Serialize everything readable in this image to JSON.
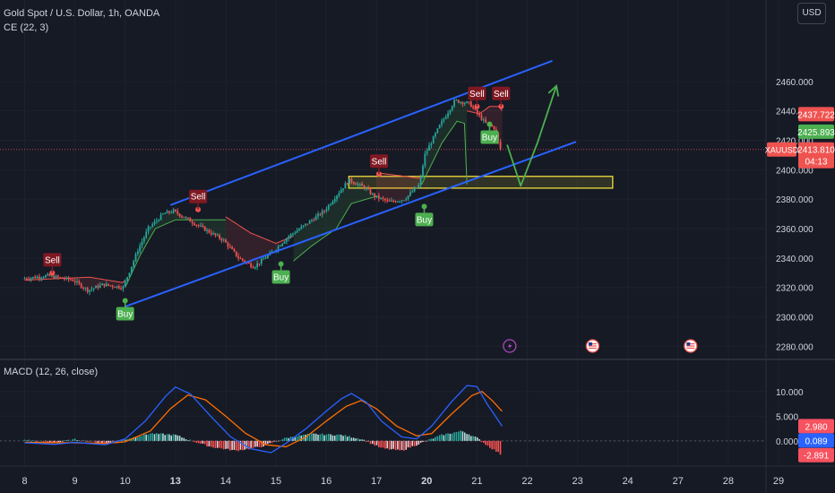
{
  "header": {
    "symbol_title": "Gold Spot / U.S. Dollar, 1h, OANDA",
    "indicator_ce": "CE (22, 3)",
    "currency": "USD"
  },
  "macd_legend": "MACD (12, 26, close)",
  "colors": {
    "background": "#161a25",
    "up": "#26a69a",
    "down": "#ef5350",
    "channel": "#2962ff",
    "arrow": "#4caf50",
    "macd_line": "#2962ff",
    "signal_line": "#ff6d00",
    "ce_long": "#4caf50",
    "ce_short": "#ef5350",
    "zone": "#ffeb3b"
  },
  "chart_data": [
    {
      "type": "candlestick",
      "title": "Gold Spot / U.S. Dollar, 1h, OANDA",
      "ylim": [
        2276,
        2480
      ],
      "y_ticks": [
        "2280.000",
        "2300.000",
        "2320.000",
        "2340.000",
        "2360.000",
        "2380.000",
        "2400.000",
        "2420.000",
        "2440.000",
        "2460.000"
      ],
      "x_labels": [
        "8",
        "9",
        "10",
        "13",
        "14",
        "15",
        "16",
        "17",
        "20",
        "21",
        "22",
        "23",
        "24",
        "27",
        "28",
        "29"
      ],
      "x_label_bold": [
        "13",
        "20"
      ],
      "price_path": [
        [
          0,
          2326
        ],
        [
          0.5,
          2328
        ],
        [
          1,
          2325
        ],
        [
          1.3,
          2318
        ],
        [
          1.6,
          2322
        ],
        [
          2,
          2320
        ],
        [
          2.3,
          2346
        ],
        [
          2.5,
          2360
        ],
        [
          2.8,
          2370
        ],
        [
          3,
          2372
        ],
        [
          3.3,
          2366
        ],
        [
          3.6,
          2360
        ],
        [
          4,
          2352
        ],
        [
          4.3,
          2340
        ],
        [
          4.6,
          2334
        ],
        [
          5,
          2345
        ],
        [
          5.3,
          2355
        ],
        [
          5.6,
          2362
        ],
        [
          6,
          2372
        ],
        [
          6.3,
          2385
        ],
        [
          6.5,
          2393
        ],
        [
          6.8,
          2388
        ],
        [
          7,
          2382
        ],
        [
          7.3,
          2378
        ],
        [
          7.6,
          2380
        ],
        [
          7.9,
          2390
        ],
        [
          8,
          2410
        ],
        [
          8.3,
          2430
        ],
        [
          8.6,
          2447
        ],
        [
          8.9,
          2445
        ],
        [
          9,
          2440
        ],
        [
          9.2,
          2432
        ],
        [
          9.4,
          2428
        ],
        [
          9.5,
          2413.81
        ]
      ],
      "chandelier_exit": [
        {
          "side": "short",
          "points": [
            [
              0,
              2325
            ],
            [
              1.3,
              2327
            ],
            [
              2,
              2323
            ]
          ]
        },
        {
          "side": "long",
          "points": [
            [
              2,
              2320
            ],
            [
              2.3,
              2342
            ],
            [
              2.6,
              2360
            ],
            [
              3,
              2366
            ],
            [
              4,
              2366
            ]
          ]
        },
        {
          "side": "short",
          "points": [
            [
              4,
              2368
            ],
            [
              4.5,
              2357
            ],
            [
              5,
              2350
            ],
            [
              5.35,
              2355
            ]
          ]
        },
        {
          "side": "long",
          "points": [
            [
              5.35,
              2338
            ],
            [
              5.7,
              2348
            ],
            [
              6.2,
              2360
            ],
            [
              6.5,
              2377
            ],
            [
              7,
              2382
            ]
          ]
        },
        {
          "side": "short",
          "points": [
            [
              7,
              2398
            ],
            [
              7.9,
              2394
            ]
          ]
        },
        {
          "side": "long",
          "points": [
            [
              7.9,
              2390
            ],
            [
              8.3,
              2418
            ],
            [
              8.6,
              2433
            ],
            [
              8.8,
              2431
            ]
          ]
        },
        {
          "side": "short",
          "points": [
            [
              8.8,
              2440
            ],
            [
              9.05,
              2438
            ],
            [
              9.25,
              2443
            ],
            [
              9.5,
              2443
            ]
          ]
        }
      ],
      "signals": [
        {
          "label": "Sell",
          "x": 0.55,
          "price": 2330,
          "dir": "sell"
        },
        {
          "label": "Buy",
          "x": 2.0,
          "price": 2311,
          "dir": "buy"
        },
        {
          "label": "Sell",
          "x": 3.45,
          "price": 2373,
          "dir": "sell"
        },
        {
          "label": "Buy",
          "x": 5.1,
          "price": 2336,
          "dir": "buy"
        },
        {
          "label": "Sell",
          "x": 7.05,
          "price": 2397,
          "dir": "sell"
        },
        {
          "label": "Buy",
          "x": 7.95,
          "price": 2375,
          "dir": "buy"
        },
        {
          "label": "Sell",
          "x": 9.0,
          "price": 2443,
          "dir": "sell"
        },
        {
          "label": "Buy",
          "x": 9.25,
          "price": 2431,
          "dir": "buy"
        },
        {
          "label": "Sell",
          "x": 9.48,
          "price": 2443,
          "dir": "sell"
        }
      ],
      "channel_upper": [
        [
          2.9,
          2376
        ],
        [
          10.5,
          2474
        ]
      ],
      "channel_lower": [
        [
          2.0,
          2307
        ],
        [
          10.97,
          2419
        ]
      ],
      "zone": {
        "x_start": 6.45,
        "x_end": 11.7,
        "top": 2395.5,
        "bottom": 2387.5
      },
      "projection_path": [
        [
          9.6,
          2417
        ],
        [
          9.87,
          2389
        ],
        [
          10.2,
          2418
        ],
        [
          10.58,
          2457
        ]
      ],
      "current_price_line": 2413.81,
      "price_labels": [
        {
          "text": "2437.722",
          "price": 2437.722,
          "color": "#ef5350",
          "symbol": ""
        },
        {
          "text": "2425.893",
          "price": 2425.893,
          "color": "#4caf50",
          "symbol": ""
        },
        {
          "text": "2413.810",
          "price": 2413.81,
          "color": "#ef5350",
          "symbol": "XAUUSD"
        }
      ],
      "countdown": "04:13",
      "event_icons": [
        {
          "x": 9.65,
          "kind": "bolt"
        },
        {
          "x": 11.3,
          "kind": "flag"
        },
        {
          "x": 13.25,
          "kind": "flag"
        }
      ]
    },
    {
      "type": "line",
      "title": "MACD (12, 26, close)",
      "ylim": [
        -3.3,
        12.5
      ],
      "y_ticks": [
        "10.000",
        "5.000",
        "0.000"
      ],
      "series": [
        {
          "name": "MACD",
          "values": [
            [
              0,
              -0.4
            ],
            [
              0.6,
              -0.7
            ],
            [
              1,
              -0.3
            ],
            [
              1.6,
              -0.8
            ],
            [
              2,
              0.4
            ],
            [
              2.4,
              4
            ],
            [
              2.8,
              9
            ],
            [
              3,
              10.9
            ],
            [
              3.3,
              9.5
            ],
            [
              3.7,
              5
            ],
            [
              4.1,
              0.8
            ],
            [
              4.5,
              -1.6
            ],
            [
              4.9,
              -2.4
            ],
            [
              5.2,
              -0.5
            ],
            [
              5.6,
              2.5
            ],
            [
              6.0,
              6
            ],
            [
              6.3,
              8.5
            ],
            [
              6.5,
              9.6
            ],
            [
              6.8,
              7.8
            ],
            [
              7.1,
              4
            ],
            [
              7.5,
              0.8
            ],
            [
              7.8,
              0.4
            ],
            [
              8.1,
              3
            ],
            [
              8.5,
              8
            ],
            [
              8.8,
              11.2
            ],
            [
              9.0,
              11
            ],
            [
              9.2,
              7.5
            ],
            [
              9.4,
              4.5
            ],
            [
              9.5,
              2.98
            ]
          ]
        },
        {
          "name": "Signal",
          "values": [
            [
              0,
              -0.3
            ],
            [
              1,
              -0.4
            ],
            [
              1.6,
              -0.5
            ],
            [
              2,
              -0.2
            ],
            [
              2.5,
              2
            ],
            [
              2.9,
              6.5
            ],
            [
              3.25,
              9.3
            ],
            [
              3.6,
              8.3
            ],
            [
              4.0,
              5
            ],
            [
              4.4,
              1.5
            ],
            [
              4.8,
              -0.8
            ],
            [
              5.2,
              -1.2
            ],
            [
              5.6,
              0.8
            ],
            [
              6.0,
              4
            ],
            [
              6.4,
              7
            ],
            [
              6.7,
              8.2
            ],
            [
              7.0,
              6.5
            ],
            [
              7.4,
              3
            ],
            [
              7.8,
              1
            ],
            [
              8.1,
              1.5
            ],
            [
              8.5,
              5.5
            ],
            [
              8.9,
              9.2
            ],
            [
              9.1,
              10
            ],
            [
              9.3,
              8.2
            ],
            [
              9.5,
              6
            ]
          ]
        }
      ],
      "histogram": [
        [
          0,
          0.2
        ],
        [
          0.6,
          -0.4
        ],
        [
          1,
          0.3
        ],
        [
          1.6,
          -0.5
        ],
        [
          2,
          0.3
        ],
        [
          2.5,
          1.5
        ],
        [
          3,
          1.2
        ],
        [
          3.3,
          0.1
        ],
        [
          3.7,
          -1.2
        ],
        [
          4.2,
          -2
        ],
        [
          4.7,
          -1.2
        ],
        [
          5.2,
          0.6
        ],
        [
          5.7,
          1.4
        ],
        [
          6.3,
          1.2
        ],
        [
          6.7,
          0.4
        ],
        [
          7.1,
          -1.5
        ],
        [
          7.5,
          -2.0
        ],
        [
          7.9,
          -0.4
        ],
        [
          8.3,
          1.2
        ],
        [
          8.7,
          2.0
        ],
        [
          9.0,
          0.6
        ],
        [
          9.2,
          -0.9
        ],
        [
          9.5,
          -2.89
        ]
      ],
      "value_labels": [
        {
          "text": "2.980",
          "value": 2.98,
          "color": "#f7525f"
        },
        {
          "text": "0.089",
          "value": 0.089,
          "color": "#2962ff"
        },
        {
          "text": "-2.891",
          "value": -2.891,
          "color": "#f7525f"
        }
      ]
    }
  ]
}
